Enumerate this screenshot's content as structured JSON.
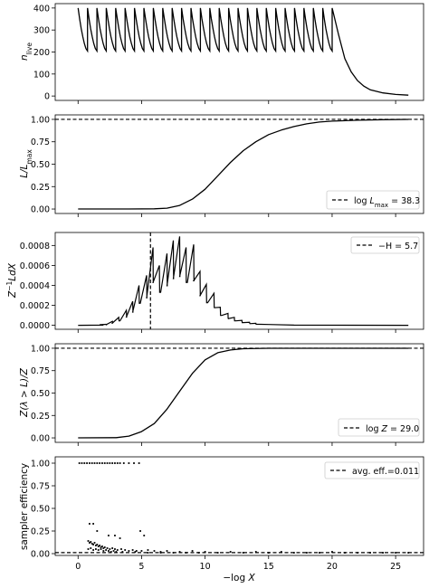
{
  "chart_data": [
    {
      "type": "line",
      "ylabel": "n_live",
      "xlim": [
        -1.8,
        27.2
      ],
      "ylim": [
        -20,
        420
      ],
      "yticks": [
        0,
        100,
        200,
        300,
        400
      ],
      "grid": false,
      "series": [
        {
          "color": "#000000",
          "sawtooth": {
            "teeth": 27,
            "x_start": 0,
            "x_end": 20.0,
            "top": 400,
            "bottom": 205
          },
          "tail": [
            [
              20.0,
              400
            ],
            [
              20.5,
              280
            ],
            [
              21,
              170
            ],
            [
              21.5,
              110
            ],
            [
              22,
              70
            ],
            [
              22.5,
              45
            ],
            [
              23,
              28
            ],
            [
              24,
              14
            ],
            [
              25,
              7
            ],
            [
              26,
              4
            ]
          ]
        }
      ]
    },
    {
      "type": "line",
      "ylabel": "L/L_max",
      "xlim": [
        -1.8,
        27.2
      ],
      "ylim": [
        -0.05,
        1.05
      ],
      "yticks": [
        0.0,
        0.25,
        0.5,
        0.75,
        1.0
      ],
      "hline": 1.0,
      "legend": {
        "label": "log L_max = 38.3",
        "position": "lower-right"
      },
      "series": [
        {
          "color": "#000000",
          "points": [
            [
              0,
              0
            ],
            [
              4,
              0
            ],
            [
              6,
              0.002
            ],
            [
              7,
              0.01
            ],
            [
              8,
              0.04
            ],
            [
              9,
              0.11
            ],
            [
              10,
              0.22
            ],
            [
              11,
              0.37
            ],
            [
              12,
              0.52
            ],
            [
              13,
              0.65
            ],
            [
              14,
              0.75
            ],
            [
              15,
              0.83
            ],
            [
              16,
              0.88
            ],
            [
              17,
              0.92
            ],
            [
              18,
              0.95
            ],
            [
              19,
              0.97
            ],
            [
              20,
              0.98
            ],
            [
              22,
              0.99
            ],
            [
              24,
              0.997
            ],
            [
              26,
              1.0
            ]
          ]
        }
      ]
    },
    {
      "type": "line",
      "ylabel": "Z^-1 L dX",
      "xlim": [
        -1.8,
        27.2
      ],
      "ylim": [
        -4e-05,
        0.00093
      ],
      "yticks": [
        0.0,
        0.0002,
        0.0004,
        0.0006,
        0.0008
      ],
      "ytick_labels": [
        "0.0000",
        "0.0002",
        "0.0004",
        "0.0006",
        "0.0008"
      ],
      "vline": 5.7,
      "legend": {
        "label": "−H = 5.7",
        "position": "upper-right"
      },
      "series": [
        {
          "color": "#000000",
          "teeth": [
            [
              2.2,
              1e-05
            ],
            [
              2.7,
              4e-05
            ],
            [
              3.2,
              8e-05
            ],
            [
              3.8,
              0.00015
            ],
            [
              4.3,
              0.00024
            ],
            [
              4.8,
              0.0004
            ],
            [
              5.4,
              0.0005
            ],
            [
              5.9,
              0.00078
            ],
            [
              6.4,
              0.0006
            ],
            [
              7.0,
              0.00072
            ],
            [
              7.5,
              0.00085
            ],
            [
              8.0,
              0.00089
            ],
            [
              8.5,
              0.00078
            ],
            [
              9.1,
              0.00081
            ],
            [
              9.6,
              0.00054
            ],
            [
              10.1,
              0.00041
            ],
            [
              10.7,
              0.00032
            ],
            [
              11.2,
              0.00018
            ],
            [
              11.8,
              0.00012
            ],
            [
              12.3,
              8e-05
            ],
            [
              12.9,
              5e-05
            ],
            [
              13.5,
              3e-05
            ],
            [
              14.0,
              2e-05
            ]
          ],
          "tooth_drop": 0.55
        }
      ]
    },
    {
      "type": "line",
      "ylabel": "Z(λ > L)/Z",
      "xlim": [
        -1.8,
        27.2
      ],
      "ylim": [
        -0.05,
        1.05
      ],
      "yticks": [
        0.0,
        0.25,
        0.5,
        0.75,
        1.0
      ],
      "hline": 1.0,
      "legend": {
        "label": "log Z = 29.0",
        "position": "lower-right"
      },
      "series": [
        {
          "color": "#000000",
          "points": [
            [
              0,
              0
            ],
            [
              3,
              0.002
            ],
            [
              4,
              0.02
            ],
            [
              5,
              0.07
            ],
            [
              6,
              0.16
            ],
            [
              7,
              0.32
            ],
            [
              8,
              0.52
            ],
            [
              9,
              0.72
            ],
            [
              10,
              0.87
            ],
            [
              11,
              0.95
            ],
            [
              12,
              0.98
            ],
            [
              13,
              0.995
            ],
            [
              15,
              1.0
            ],
            [
              26,
              1.0
            ]
          ]
        }
      ]
    },
    {
      "type": "scatter",
      "ylabel": "sampler efficiency",
      "xlabel": "−log X",
      "xlim": [
        -1.8,
        27.2
      ],
      "ylim": [
        -0.02,
        1.07
      ],
      "yticks": [
        0.0,
        0.25,
        0.5,
        0.75,
        1.0
      ],
      "xticks": [
        0,
        5,
        10,
        15,
        20,
        25
      ],
      "hline": 0.011,
      "legend": {
        "label": "avg. eff.=0.011",
        "position": "upper-right"
      },
      "series": [
        {
          "color": "#000000",
          "points": [
            [
              0.1,
              1.0
            ],
            [
              0.3,
              1.0
            ],
            [
              0.5,
              1.0
            ],
            [
              0.7,
              1.0
            ],
            [
              0.9,
              1.0
            ],
            [
              1.1,
              1.0
            ],
            [
              1.3,
              1.0
            ],
            [
              1.5,
              1.0
            ],
            [
              1.7,
              1.0
            ],
            [
              1.9,
              1.0
            ],
            [
              2.1,
              1.0
            ],
            [
              2.3,
              1.0
            ],
            [
              2.5,
              1.0
            ],
            [
              2.7,
              1.0
            ],
            [
              2.9,
              1.0
            ],
            [
              3.1,
              1.0
            ],
            [
              3.3,
              1.0
            ],
            [
              3.6,
              1.0
            ],
            [
              4.0,
              1.0
            ],
            [
              4.4,
              1.0
            ],
            [
              4.8,
              1.0
            ],
            [
              0.9,
              0.33
            ],
            [
              1.2,
              0.33
            ],
            [
              1.5,
              0.25
            ],
            [
              2.4,
              0.2
            ],
            [
              2.9,
              0.2
            ],
            [
              3.3,
              0.17
            ],
            [
              4.9,
              0.25
            ],
            [
              5.2,
              0.2
            ],
            [
              0.8,
              0.14
            ],
            [
              0.9,
              0.12
            ],
            [
              1.0,
              0.13
            ],
            [
              1.1,
              0.11
            ],
            [
              1.2,
              0.1
            ],
            [
              1.3,
              0.12
            ],
            [
              1.4,
              0.09
            ],
            [
              1.5,
              0.1
            ],
            [
              1.6,
              0.08
            ],
            [
              1.7,
              0.09
            ],
            [
              1.8,
              0.07
            ],
            [
              1.9,
              0.08
            ],
            [
              2.0,
              0.06
            ],
            [
              2.1,
              0.07
            ],
            [
              2.3,
              0.06
            ],
            [
              2.5,
              0.05
            ],
            [
              2.7,
              0.06
            ],
            [
              2.9,
              0.05
            ],
            [
              3.1,
              0.04
            ],
            [
              3.4,
              0.05
            ],
            [
              3.7,
              0.04
            ],
            [
              4.0,
              0.03
            ],
            [
              4.3,
              0.04
            ],
            [
              4.6,
              0.03
            ],
            [
              5.0,
              0.03
            ],
            [
              5.5,
              0.04
            ],
            [
              6.0,
              0.03
            ],
            [
              6.5,
              0.02
            ],
            [
              7.0,
              0.03
            ],
            [
              8.0,
              0.02
            ],
            [
              9.0,
              0.03
            ],
            [
              10.0,
              0.02
            ],
            [
              12.0,
              0.02
            ],
            [
              14.0,
              0.02
            ],
            [
              16.0,
              0.02
            ],
            [
              18.0,
              0.01
            ],
            [
              20.0,
              0.02
            ],
            [
              22.0,
              0.01
            ],
            [
              24.0,
              0.01
            ],
            [
              26.0,
              0.01
            ],
            [
              0.8,
              0.05
            ],
            [
              1.0,
              0.06
            ],
            [
              1.2,
              0.04
            ],
            [
              1.4,
              0.05
            ],
            [
              1.6,
              0.04
            ],
            [
              1.8,
              0.05
            ],
            [
              2.0,
              0.03
            ],
            [
              2.2,
              0.04
            ],
            [
              2.4,
              0.03
            ],
            [
              2.6,
              0.02
            ],
            [
              2.8,
              0.03
            ],
            [
              3.0,
              0.02
            ],
            [
              3.5,
              0.02
            ],
            [
              4.5,
              0.02
            ],
            [
              5.5,
              0.01
            ],
            [
              6.5,
              0.01
            ],
            [
              7.5,
              0.01
            ],
            [
              8.5,
              0.01
            ],
            [
              9.5,
              0.01
            ],
            [
              11.0,
              0.01
            ],
            [
              13.0,
              0.01
            ],
            [
              15.0,
              0.01
            ],
            [
              17.0,
              0.01
            ],
            [
              19.0,
              0.01
            ],
            [
              21.0,
              0.01
            ],
            [
              23.0,
              0.01
            ],
            [
              25.0,
              0.01
            ]
          ]
        }
      ]
    }
  ],
  "labels": {
    "p1_ylabel": "n",
    "p1_ylabel_sub": "live",
    "p2_ylabel": "L/L",
    "p2_ylabel_sub": "max",
    "p2_legend_a": "log ",
    "p2_legend_b": "L",
    "p2_legend_sub": "max",
    "p2_legend_c": " = 38.3",
    "p3_ylabel_a": "Z",
    "p3_ylabel_sup": "−1",
    "p3_ylabel_b": "LdX",
    "p3_legend": "−H = 5.7",
    "p4_ylabel": "Z(λ > L)/Z",
    "p4_legend_a": "log ",
    "p4_legend_b": "Z",
    "p4_legend_c": " = 29.0",
    "p5_ylabel": "sampler efficiency",
    "p5_legend": "avg. eff.=0.011",
    "xlabel_a": "−log ",
    "xlabel_b": "X"
  }
}
